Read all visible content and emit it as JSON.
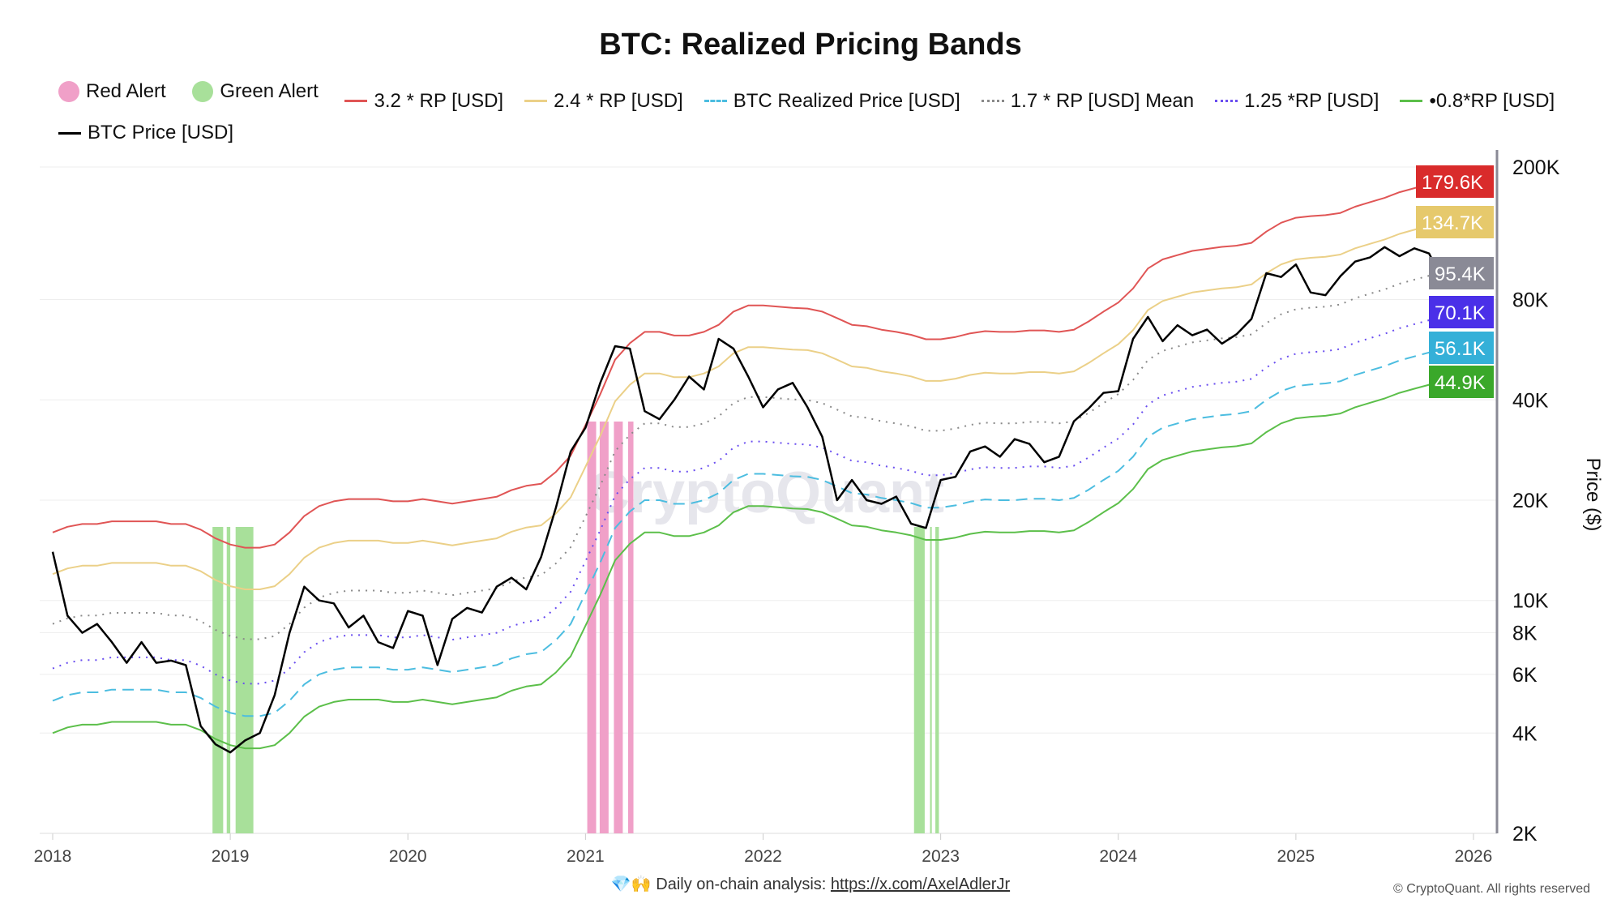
{
  "chart_data": {
    "type": "line",
    "title": "BTC: Realized Pricing Bands",
    "ylabel": "Price ($)",
    "yscale": "log",
    "ylim": [
      2000,
      200000
    ],
    "xlim": [
      2018,
      2026
    ],
    "grid": true,
    "legend_placement": "top",
    "x_ticks": [
      "2018",
      "2019",
      "2020",
      "2021",
      "2022",
      "2023",
      "2024",
      "2025",
      "2026"
    ],
    "y_ticks": [
      {
        "v": 2000,
        "label": "2K"
      },
      {
        "v": 4000,
        "label": "4K"
      },
      {
        "v": 6000,
        "label": "6K"
      },
      {
        "v": 8000,
        "label": "8K"
      },
      {
        "v": 10000,
        "label": "10K"
      },
      {
        "v": 20000,
        "label": "20K"
      },
      {
        "v": 40000,
        "label": "40K"
      },
      {
        "v": 80000,
        "label": "80K"
      },
      {
        "v": 200000,
        "label": "200K"
      }
    ],
    "start_month": "2018-01",
    "realized_price": [
      5000,
      5200,
      5300,
      5300,
      5400,
      5400,
      5400,
      5400,
      5300,
      5300,
      5100,
      4800,
      4600,
      4500,
      4500,
      4600,
      5000,
      5600,
      6000,
      6200,
      6300,
      6300,
      6300,
      6200,
      6200,
      6300,
      6200,
      6100,
      6200,
      6300,
      6400,
      6700,
      6900,
      7000,
      7600,
      8500,
      10500,
      13000,
      16500,
      18500,
      20000,
      20000,
      19500,
      19500,
      20000,
      21000,
      23000,
      24000,
      24000,
      23800,
      23600,
      23500,
      23000,
      22000,
      21000,
      20800,
      20300,
      20000,
      19600,
      19000,
      19000,
      19300,
      19800,
      20100,
      20000,
      20000,
      20200,
      20200,
      20000,
      20300,
      21500,
      23000,
      24500,
      27000,
      31000,
      33000,
      34000,
      35000,
      35500,
      36000,
      36300,
      37000,
      40000,
      42500,
      44000,
      44500,
      44800,
      45500,
      47500,
      49000,
      50500,
      52500,
      54000,
      55500,
      56000,
      56100
    ],
    "btc_price": [
      14000,
      9000,
      8000,
      8500,
      7500,
      6500,
      7500,
      6500,
      6600,
      6400,
      4200,
      3700,
      3500,
      3800,
      4000,
      5200,
      8000,
      11000,
      10000,
      9800,
      8300,
      9000,
      7500,
      7200,
      9300,
      9000,
      6400,
      8800,
      9500,
      9200,
      11000,
      11700,
      10800,
      13500,
      19000,
      28000,
      33000,
      45000,
      58000,
      57000,
      37000,
      35000,
      40000,
      47000,
      43000,
      61000,
      57000,
      47000,
      38000,
      43000,
      45000,
      38000,
      31000,
      20000,
      23000,
      20000,
      19500,
      20500,
      17000,
      16500,
      23000,
      23500,
      28000,
      29000,
      27000,
      30500,
      29500,
      26000,
      27000,
      34500,
      37700,
      42000,
      42500,
      61000,
      71000,
      60000,
      67000,
      62500,
      65000,
      59000,
      63000,
      70000,
      96000,
      93500,
      102000,
      84000,
      82500,
      94000,
      104000,
      107000,
      115000,
      108000,
      114000,
      110000,
      90000,
      88000
    ],
    "series": [
      {
        "name": "3.2 * RP [USD]",
        "multiplier": 3.2,
        "color": "#e05555",
        "style": "solid",
        "last_label": "179.6K",
        "tag_color": "#d92b2b"
      },
      {
        "name": "2.4 * RP [USD]",
        "multiplier": 2.4,
        "color": "#ebd088",
        "style": "solid",
        "last_label": "134.7K",
        "tag_color": "#e6c96c"
      },
      {
        "name": "BTC Realized Price [USD]",
        "multiplier": 1,
        "color": "#4cbde0",
        "style": "dashed",
        "last_label": "56.1K",
        "tag_color": "#34b0d8"
      },
      {
        "name": "1.7 * RP [USD] Mean",
        "multiplier": 1.7,
        "color": "#8a8a8a",
        "style": "dotted",
        "last_label": "95.4K",
        "tag_color": "#8a8a96"
      },
      {
        "name": "1.25 *RP [USD]",
        "multiplier": 1.25,
        "color": "#6a4ef0",
        "style": "dotted",
        "last_label": "70.1K",
        "tag_color": "#4a30e8"
      },
      {
        "name": "•0.8*RP [USD]",
        "multiplier": 0.8,
        "color": "#5cbf4a",
        "style": "solid",
        "last_label": "44.9K",
        "tag_color": "#3aa82a"
      },
      {
        "name": "BTC Price [USD]",
        "color": "#000000",
        "style": "solid"
      }
    ],
    "alerts": {
      "red": {
        "name": "Red Alert",
        "color": "#f0a0c8",
        "ranges": [
          [
            2021.01,
            2021.06
          ],
          [
            2021.08,
            2021.13
          ],
          [
            2021.16,
            2021.21
          ],
          [
            2021.24,
            2021.27
          ]
        ]
      },
      "green": {
        "name": "Green Alert",
        "color": "#a8e09a",
        "ranges": [
          [
            2018.9,
            2018.96
          ],
          [
            2018.98,
            2019.0
          ],
          [
            2019.03,
            2019.13
          ],
          [
            2022.85,
            2022.91
          ],
          [
            2022.94,
            2022.95
          ],
          [
            2022.97,
            2022.99
          ]
        ]
      }
    }
  },
  "watermark": "CryptoQuant",
  "footer": {
    "emoji": "💎🙌",
    "text": "Daily on-chain analysis: ",
    "link": "https://x.com/AxelAdlerJr",
    "copyright": "© CryptoQuant. All rights reserved"
  }
}
